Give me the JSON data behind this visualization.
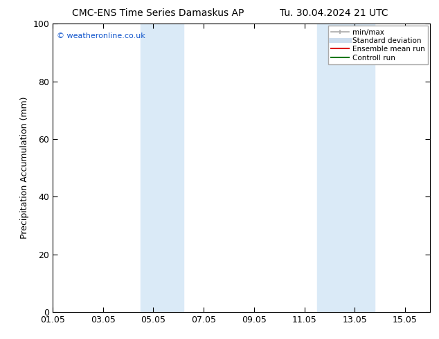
{
  "title_left": "CMC-ENS Time Series Damaskus AP",
  "title_right": "Tu. 30.04.2024 21 UTC",
  "ylabel": "Precipitation Accumulation (mm)",
  "ylim": [
    0,
    100
  ],
  "yticks": [
    0,
    20,
    40,
    60,
    80,
    100
  ],
  "xtick_labels": [
    "01.05",
    "03.05",
    "05.05",
    "07.05",
    "09.05",
    "11.05",
    "13.05",
    "15.05"
  ],
  "xtick_positions": [
    0,
    2,
    4,
    6,
    8,
    10,
    12,
    14
  ],
  "xlim": [
    0,
    15
  ],
  "shaded_bands": [
    {
      "x_start": 3.5,
      "x_end": 5.2,
      "color": "#daeaf7"
    },
    {
      "x_start": 10.5,
      "x_end": 12.8,
      "color": "#daeaf7"
    }
  ],
  "watermark_text": "© weatheronline.co.uk",
  "watermark_color": "#1155cc",
  "background_color": "#ffffff",
  "title_fontsize": 10,
  "label_fontsize": 9,
  "tick_fontsize": 9,
  "legend_entries": [
    {
      "label": "min/max",
      "color": "#aaaaaa",
      "lw": 1.2,
      "type": "line_capped"
    },
    {
      "label": "Standard deviation",
      "color": "#ccddee",
      "lw": 5,
      "type": "line_thick"
    },
    {
      "label": "Ensemble mean run",
      "color": "#dd0000",
      "lw": 1.5,
      "type": "line"
    },
    {
      "label": "Controll run",
      "color": "#007700",
      "lw": 1.5,
      "type": "line"
    }
  ]
}
